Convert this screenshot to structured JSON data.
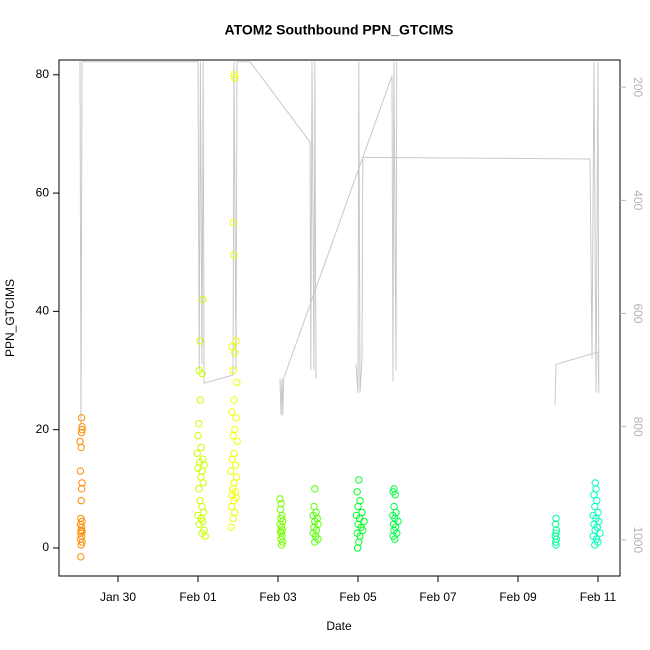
{
  "chart_data": {
    "type": "scatter",
    "title": "ATOM2 Southbound PPN_GTCIMS",
    "x_label": "Date",
    "y_label": "PPN_GTCIMS",
    "xlim": [
      28.525,
      42.55
    ],
    "xticks": [
      {
        "value": 30,
        "label": "Jan 30"
      },
      {
        "value": 32,
        "label": "Feb 01"
      },
      {
        "value": 34,
        "label": "Feb 03"
      },
      {
        "value": 36,
        "label": "Feb 05"
      },
      {
        "value": 38,
        "label": "Feb 07"
      },
      {
        "value": 40,
        "label": "Feb 09"
      },
      {
        "value": 42,
        "label": "Feb 11"
      }
    ],
    "ylim": [
      -4.74,
      82.5
    ],
    "yticks": [
      0,
      20,
      40,
      60,
      80
    ],
    "y2lim": [
      1064,
      152
    ],
    "y2ticks": [
      200,
      400,
      600,
      800,
      1000
    ],
    "y2_color": "#b4b4b4",
    "series": [
      {
        "color": "#ff8c00",
        "x": [
          29.09,
          29.1,
          29.1,
          29.09,
          29.05,
          29.08,
          29.06,
          29.1,
          29.09,
          29.08,
          29.07,
          29.1,
          29.06,
          29.09,
          29.08,
          29.1,
          29.07,
          29.09,
          29.06,
          29.1,
          29.08,
          29.07
        ],
        "values": [
          22,
          20.5,
          20,
          19.5,
          18,
          17,
          13,
          11,
          10,
          8,
          5,
          4.5,
          4,
          3.5,
          3,
          2.8,
          2.5,
          2,
          1.5,
          1,
          0.5,
          -1.5
        ]
      },
      {
        "color": "#ccff00",
        "x": [
          32.12,
          32.05,
          32.03,
          32.1,
          32.06,
          32.02,
          32.0,
          32.08,
          31.98,
          32.12,
          32.04,
          32.15,
          32.0,
          32.1,
          32.07,
          32.13,
          32.02,
          32.05,
          32.1,
          32.14,
          32.0,
          32.08,
          32.12,
          32.03,
          32.15,
          32.1,
          32.18
        ],
        "values": [
          42,
          35,
          30,
          29.5,
          25,
          21,
          19,
          17,
          16,
          15,
          14.5,
          14,
          13.5,
          13,
          12,
          11,
          10,
          8,
          7,
          6,
          5.5,
          5,
          4.5,
          4,
          3,
          2.5,
          2
        ]
      },
      {
        "color": "#eeff00",
        "x": [
          32.9,
          32.92,
          32.88,
          32.9,
          32.95,
          32.85,
          32.92,
          32.88,
          32.97,
          32.9,
          32.85,
          32.95,
          32.92,
          32.88,
          32.98,
          32.9,
          32.86,
          32.94,
          32.82,
          32.96,
          32.9,
          32.87,
          32.93,
          32.85,
          32.95,
          32.9,
          32.84,
          32.92,
          32.88,
          32.83
        ],
        "values": [
          80,
          79.5,
          55,
          49.5,
          35,
          34,
          33,
          30,
          28,
          25,
          23,
          22,
          20,
          19,
          18,
          16,
          15,
          14,
          13,
          12,
          11,
          10,
          9.5,
          9,
          8.5,
          8,
          7,
          6,
          5,
          3.5
        ]
      },
      {
        "color": "#77ff00",
        "x": [
          34.05,
          34.08,
          34.06,
          34.1,
          34.07,
          34.12,
          34.05,
          34.09,
          34.11,
          34.06,
          34.08,
          34.1,
          34.07,
          34.12,
          34.09
        ],
        "values": [
          8.3,
          7.5,
          6.5,
          5.5,
          5,
          4.5,
          4,
          3.5,
          3,
          2.8,
          2.5,
          2,
          1.5,
          1,
          0.5
        ]
      },
      {
        "color": "#55ff00",
        "x": [
          34.92,
          34.9,
          34.95,
          34.88,
          34.98,
          34.92,
          35.0,
          34.9,
          34.96,
          34.88,
          34.94,
          35.0,
          34.92
        ],
        "values": [
          10,
          7,
          6,
          5.5,
          5,
          4.5,
          4,
          3.5,
          3,
          2.5,
          2,
          1.5,
          1
        ]
      },
      {
        "color": "#00ff22",
        "x": [
          36.02,
          35.98,
          36.05,
          36.0,
          36.1,
          35.96,
          36.04,
          36.15,
          36.0,
          36.08,
          36.12,
          35.98,
          36.05,
          36.02,
          35.99
        ],
        "values": [
          11.5,
          9.5,
          8,
          7,
          6,
          5.5,
          5,
          4.5,
          4,
          3.5,
          3,
          2.5,
          2,
          1,
          0
        ]
      },
      {
        "color": "#00ff44",
        "x": [
          36.9,
          36.88,
          36.93,
          36.9,
          36.95,
          36.87,
          36.92,
          37.0,
          36.89,
          36.94,
          36.9,
          36.97,
          36.88,
          36.92
        ],
        "values": [
          10,
          9.5,
          9,
          7,
          6,
          5.5,
          5,
          4.5,
          4,
          3.5,
          3,
          2.5,
          2,
          1.5
        ]
      },
      {
        "color": "#00ff99",
        "x": [
          40.95,
          40.94,
          40.96,
          40.95,
          40.93,
          40.96,
          40.94,
          40.95
        ],
        "values": [
          5,
          4,
          3,
          2.5,
          2,
          1.5,
          1,
          0.5
        ]
      },
      {
        "color": "#00ffbb",
        "x": [
          41.93,
          41.95,
          41.9,
          41.97,
          41.92,
          42.0,
          41.88,
          41.95,
          42.02,
          41.9,
          41.98,
          41.93,
          42.05,
          41.88,
          41.96,
          42.0,
          41.92
        ],
        "values": [
          11,
          10,
          9,
          8,
          7,
          6,
          5.5,
          5,
          4.5,
          4,
          3.5,
          3,
          2.5,
          2,
          1.5,
          1,
          0.5
        ]
      },
      {
        "type": "line",
        "axis": "y2",
        "color": "#c8c8c8",
        "x": [
          29.05,
          29.075,
          29.1,
          32.0,
          32.03,
          32.06,
          32.1,
          32.13,
          32.15,
          32.875,
          32.9,
          32.95,
          32.975,
          33.3,
          34.8,
          34.82,
          34.85,
          34.9,
          34.92,
          34.95,
          null,
          34.05,
          34.075,
          34.1,
          34.12,
          34.14,
          36.85,
          36.875,
          36.9,
          36.95,
          36.97,
          null,
          35.95,
          36.0,
          36.02,
          36.05,
          36.1,
          36.12,
          41.8,
          41.85,
          41.9,
          41.95,
          42.0,
          42.02,
          42.0,
          40.95,
          40.925
        ],
        "values": [
          155,
          800,
          155,
          155,
          700,
          155,
          690,
          155,
          723,
          709,
          155,
          700,
          155,
          155,
          297,
          700,
          155,
          700,
          155,
          715,
          null,
          715,
          780,
          715,
          780,
          715,
          180,
          720,
          155,
          700,
          155,
          null,
          690,
          740,
          155,
          740,
          680,
          324,
          327,
          680,
          155,
          740,
          155,
          740,
          668,
          690,
          762
        ]
      }
    ]
  }
}
